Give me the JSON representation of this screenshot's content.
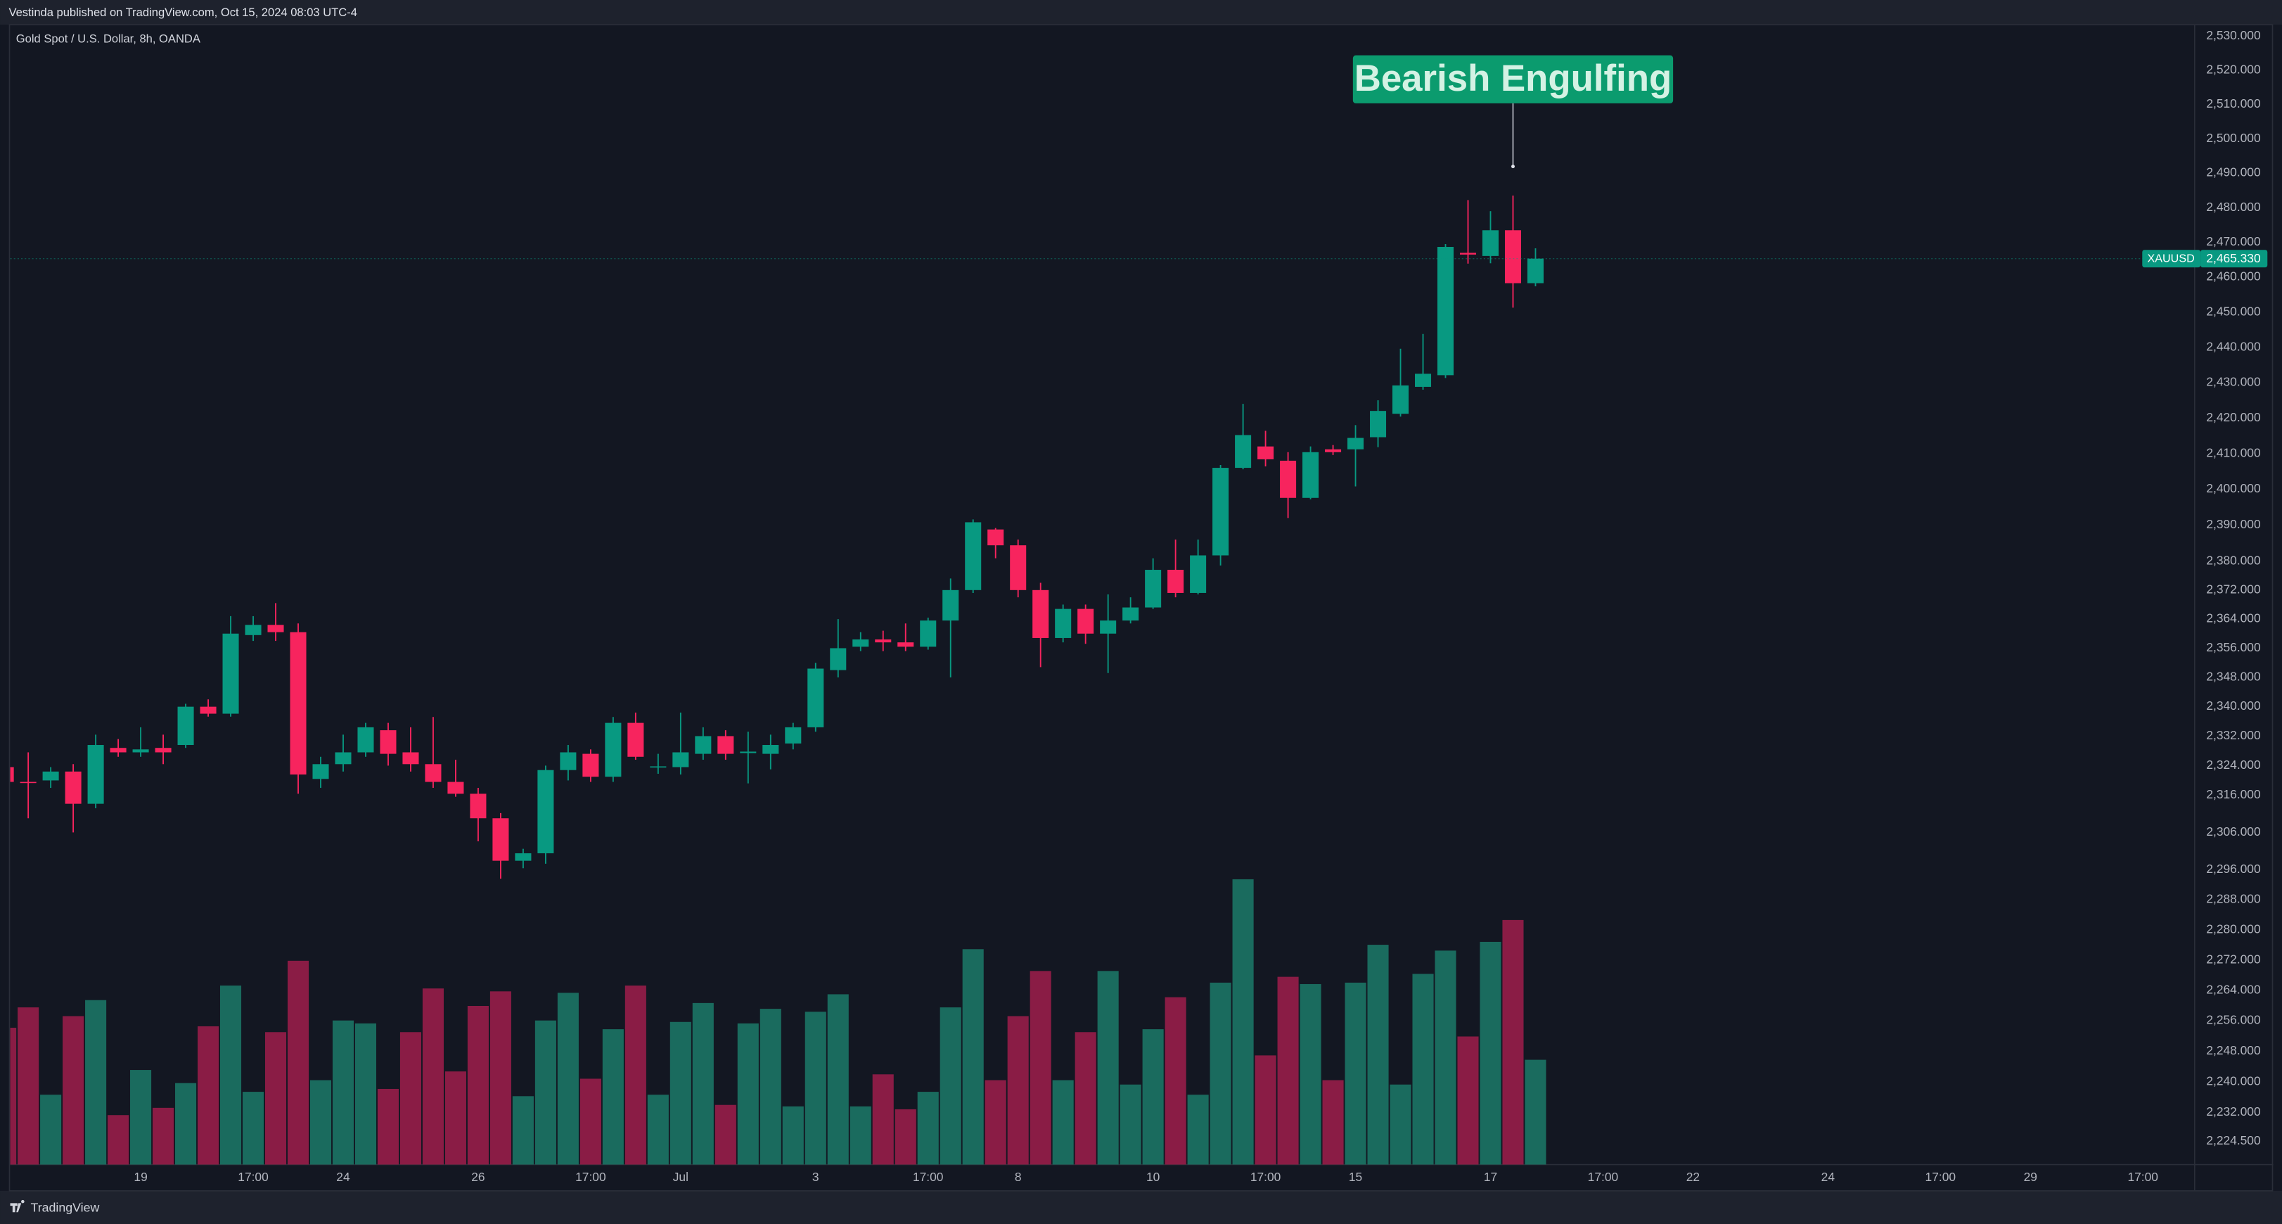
{
  "header": {
    "text": "Vestinda published on TradingView.com, Oct 15, 2024 08:03 UTC-4"
  },
  "footer": {
    "logo_text": "TradingView"
  },
  "chart_data": {
    "type": "candlestick",
    "title": "Gold Spot / U.S. Dollar, 8h, OANDA",
    "symbol": "XAUUSD",
    "last_price": {
      "value": 2465.33,
      "label": "2,465.330"
    },
    "annotation": {
      "text": "Bearish Engulfing",
      "candle": 67
    },
    "up_color": "#089981",
    "down_color": "#f7245e",
    "volume_up_color": "#1a6b5e",
    "volume_down_color": "#8a1c45",
    "log_scale": true,
    "grid": false,
    "open": [
      2323.6,
      2319.6,
      2320,
      2322.4,
      2313.7,
      2328.8,
      2327.6,
      2328.8,
      2329.6,
      2340,
      2338.1,
      2359.6,
      2362.4,
      2360.4,
      2320.4,
      2324.4,
      2327.6,
      2333.6,
      2327.6,
      2324.4,
      2319.6,
      2316.4,
      2309.8,
      2298.4,
      2300.4,
      2322.8,
      2327.2,
      2321,
      2335.6,
      2323.6,
      2323.6,
      2327.2,
      2332,
      2327.4,
      2327.2,
      2330,
      2334.4,
      2350,
      2356.4,
      2358.4,
      2357.6,
      2356.4,
      2363.6,
      2372,
      2388.8,
      2384.4,
      2372,
      2358.8,
      2366.8,
      2360,
      2363.6,
      2367.2,
      2377.6,
      2371.2,
      2381.6,
      2406,
      2412,
      2408,
      2397.6,
      2411.2,
      2411.2,
      2414.6,
      2421.2,
      2428.8,
      2432.1,
      2467,
      2466.1,
      2473.5,
      2458.3
    ],
    "high": [
      2326.5,
      2327.6,
      2323.6,
      2324.4,
      2332.4,
      2331.2,
      2334.4,
      2332.4,
      2340.8,
      2342,
      2364.8,
      2364.8,
      2368.4,
      2362.8,
      2326.4,
      2332.4,
      2335.6,
      2335.6,
      2334.4,
      2337.2,
      2325.6,
      2318,
      2311.2,
      2301.6,
      2324,
      2329.6,
      2328.4,
      2337.2,
      2338.4,
      2327.2,
      2338.4,
      2334.4,
      2333.6,
      2333.2,
      2332.4,
      2335.6,
      2352,
      2364,
      2360.4,
      2360.8,
      2362.8,
      2364.4,
      2375.2,
      2391.6,
      2389.2,
      2386,
      2374,
      2368,
      2368,
      2370.8,
      2370,
      2380.8,
      2386,
      2386,
      2406.8,
      2424,
      2416.4,
      2410.4,
      2412,
      2412.4,
      2418,
      2425,
      2439.6,
      2443.8,
      2469.5,
      2482.2,
      2479,
      2483.5,
      2468.3
    ],
    "low": [
      2318,
      2309.8,
      2318,
      2306,
      2312.5,
      2326.4,
      2326.4,
      2324.4,
      2328.8,
      2337.3,
      2337.3,
      2358,
      2358,
      2316.4,
      2318,
      2322.4,
      2326.4,
      2324,
      2322.4,
      2318,
      2315.6,
      2303.6,
      2293.6,
      2296.4,
      2297.6,
      2320,
      2319.6,
      2319.6,
      2325.6,
      2321.8,
      2321.6,
      2325.6,
      2325.6,
      2319.2,
      2323,
      2328.4,
      2333.2,
      2348,
      2355.2,
      2355.2,
      2355.2,
      2355.6,
      2348,
      2371.2,
      2380.8,
      2370,
      2350.8,
      2357.6,
      2357.2,
      2349.2,
      2362.8,
      2366.8,
      2370,
      2370.8,
      2378.8,
      2405.6,
      2406.4,
      2392,
      2397.2,
      2409.6,
      2400.8,
      2411.8,
      2420.4,
      2428,
      2431.3,
      2463.9,
      2464,
      2451.3,
      2457.4
    ],
    "close": [
      2319.6,
      2319.4,
      2322.4,
      2313.7,
      2329.6,
      2327.6,
      2328.4,
      2327.6,
      2340,
      2338.1,
      2360,
      2362.4,
      2360.4,
      2321.6,
      2324.4,
      2327.6,
      2334.4,
      2327.2,
      2324.4,
      2319.6,
      2316.4,
      2309.8,
      2298.4,
      2300.4,
      2322.8,
      2327.6,
      2321,
      2335.6,
      2326.4,
      2323.8,
      2327.6,
      2332,
      2327.2,
      2327.8,
      2329.6,
      2334.4,
      2350.4,
      2356,
      2358.4,
      2357.6,
      2356.4,
      2363.6,
      2372,
      2390.8,
      2384.4,
      2372,
      2358.8,
      2366.8,
      2360,
      2363.6,
      2367.2,
      2377.6,
      2371.2,
      2381.6,
      2406,
      2415.2,
      2408.4,
      2397.6,
      2410.4,
      2410.4,
      2414.4,
      2422,
      2429.2,
      2432.5,
      2468.7,
      2466.5,
      2473.5,
      2458.3,
      2465.33
    ],
    "volume": [
      94,
      108,
      48,
      102,
      113,
      34,
      65,
      39,
      56,
      95,
      123,
      50,
      91,
      140,
      58,
      99,
      97,
      52,
      91,
      121,
      64,
      109,
      119,
      47,
      99,
      118,
      59,
      93,
      123,
      48,
      98,
      111,
      41,
      97,
      107,
      40,
      105,
      117,
      40,
      62,
      38,
      50,
      108,
      148,
      58,
      102,
      133,
      58,
      91,
      133,
      55,
      93,
      115,
      48,
      125,
      196,
      75,
      129,
      124,
      58,
      125,
      151,
      55,
      131,
      147,
      88,
      153,
      168,
      72
    ],
    "xlim": [
      0.2,
      97.3
    ],
    "xticks": [
      {
        "value": 6,
        "label": "19"
      },
      {
        "value": 11,
        "label": "17:00"
      },
      {
        "value": 15,
        "label": "24"
      },
      {
        "value": 21,
        "label": "26"
      },
      {
        "value": 26,
        "label": "17:00"
      },
      {
        "value": 30,
        "label": "Jul"
      },
      {
        "value": 36,
        "label": "3"
      },
      {
        "value": 41,
        "label": "17:00"
      },
      {
        "value": 45,
        "label": "8"
      },
      {
        "value": 51,
        "label": "10"
      },
      {
        "value": 56,
        "label": "17:00"
      },
      {
        "value": 60,
        "label": "15"
      },
      {
        "value": 66,
        "label": "17"
      },
      {
        "value": 71,
        "label": "17:00"
      },
      {
        "value": 75,
        "label": "22"
      },
      {
        "value": 81,
        "label": "24"
      },
      {
        "value": 86,
        "label": "17:00"
      },
      {
        "value": 90,
        "label": "29"
      },
      {
        "value": 95,
        "label": "17:00"
      }
    ],
    "ylim": [
      2218.5,
      2533.4
    ],
    "yticks": [
      {
        "value": 2530,
        "label": "2,530.000"
      },
      {
        "value": 2520,
        "label": "2,520.000"
      },
      {
        "value": 2510,
        "label": "2,510.000"
      },
      {
        "value": 2500,
        "label": "2,500.000"
      },
      {
        "value": 2490,
        "label": "2,490.000"
      },
      {
        "value": 2480,
        "label": "2,480.000"
      },
      {
        "value": 2470,
        "label": "2,470.000"
      },
      {
        "value": 2460,
        "label": "2,460.000"
      },
      {
        "value": 2450,
        "label": "2,450.000"
      },
      {
        "value": 2440,
        "label": "2,440.000"
      },
      {
        "value": 2430,
        "label": "2,430.000"
      },
      {
        "value": 2420,
        "label": "2,420.000"
      },
      {
        "value": 2410,
        "label": "2,410.000"
      },
      {
        "value": 2400,
        "label": "2,400.000"
      },
      {
        "value": 2390,
        "label": "2,390.000"
      },
      {
        "value": 2380,
        "label": "2,380.000"
      },
      {
        "value": 2372,
        "label": "2,372.000"
      },
      {
        "value": 2364,
        "label": "2,364.000"
      },
      {
        "value": 2356,
        "label": "2,356.000"
      },
      {
        "value": 2348,
        "label": "2,348.000"
      },
      {
        "value": 2340,
        "label": "2,340.000"
      },
      {
        "value": 2332,
        "label": "2,332.000"
      },
      {
        "value": 2324,
        "label": "2,324.000"
      },
      {
        "value": 2316,
        "label": "2,316.000"
      },
      {
        "value": 2306,
        "label": "2,306.000"
      },
      {
        "value": 2296,
        "label": "2,296.000"
      },
      {
        "value": 2288,
        "label": "2,288.000"
      },
      {
        "value": 2280,
        "label": "2,280.000"
      },
      {
        "value": 2272,
        "label": "2,272.000"
      },
      {
        "value": 2264,
        "label": "2,264.000"
      },
      {
        "value": 2256,
        "label": "2,256.000"
      },
      {
        "value": 2248,
        "label": "2,248.000"
      },
      {
        "value": 2240,
        "label": "2,240.000"
      },
      {
        "value": 2232,
        "label": "2,232.000"
      },
      {
        "value": 2224.5,
        "label": "2,224.500"
      }
    ]
  }
}
